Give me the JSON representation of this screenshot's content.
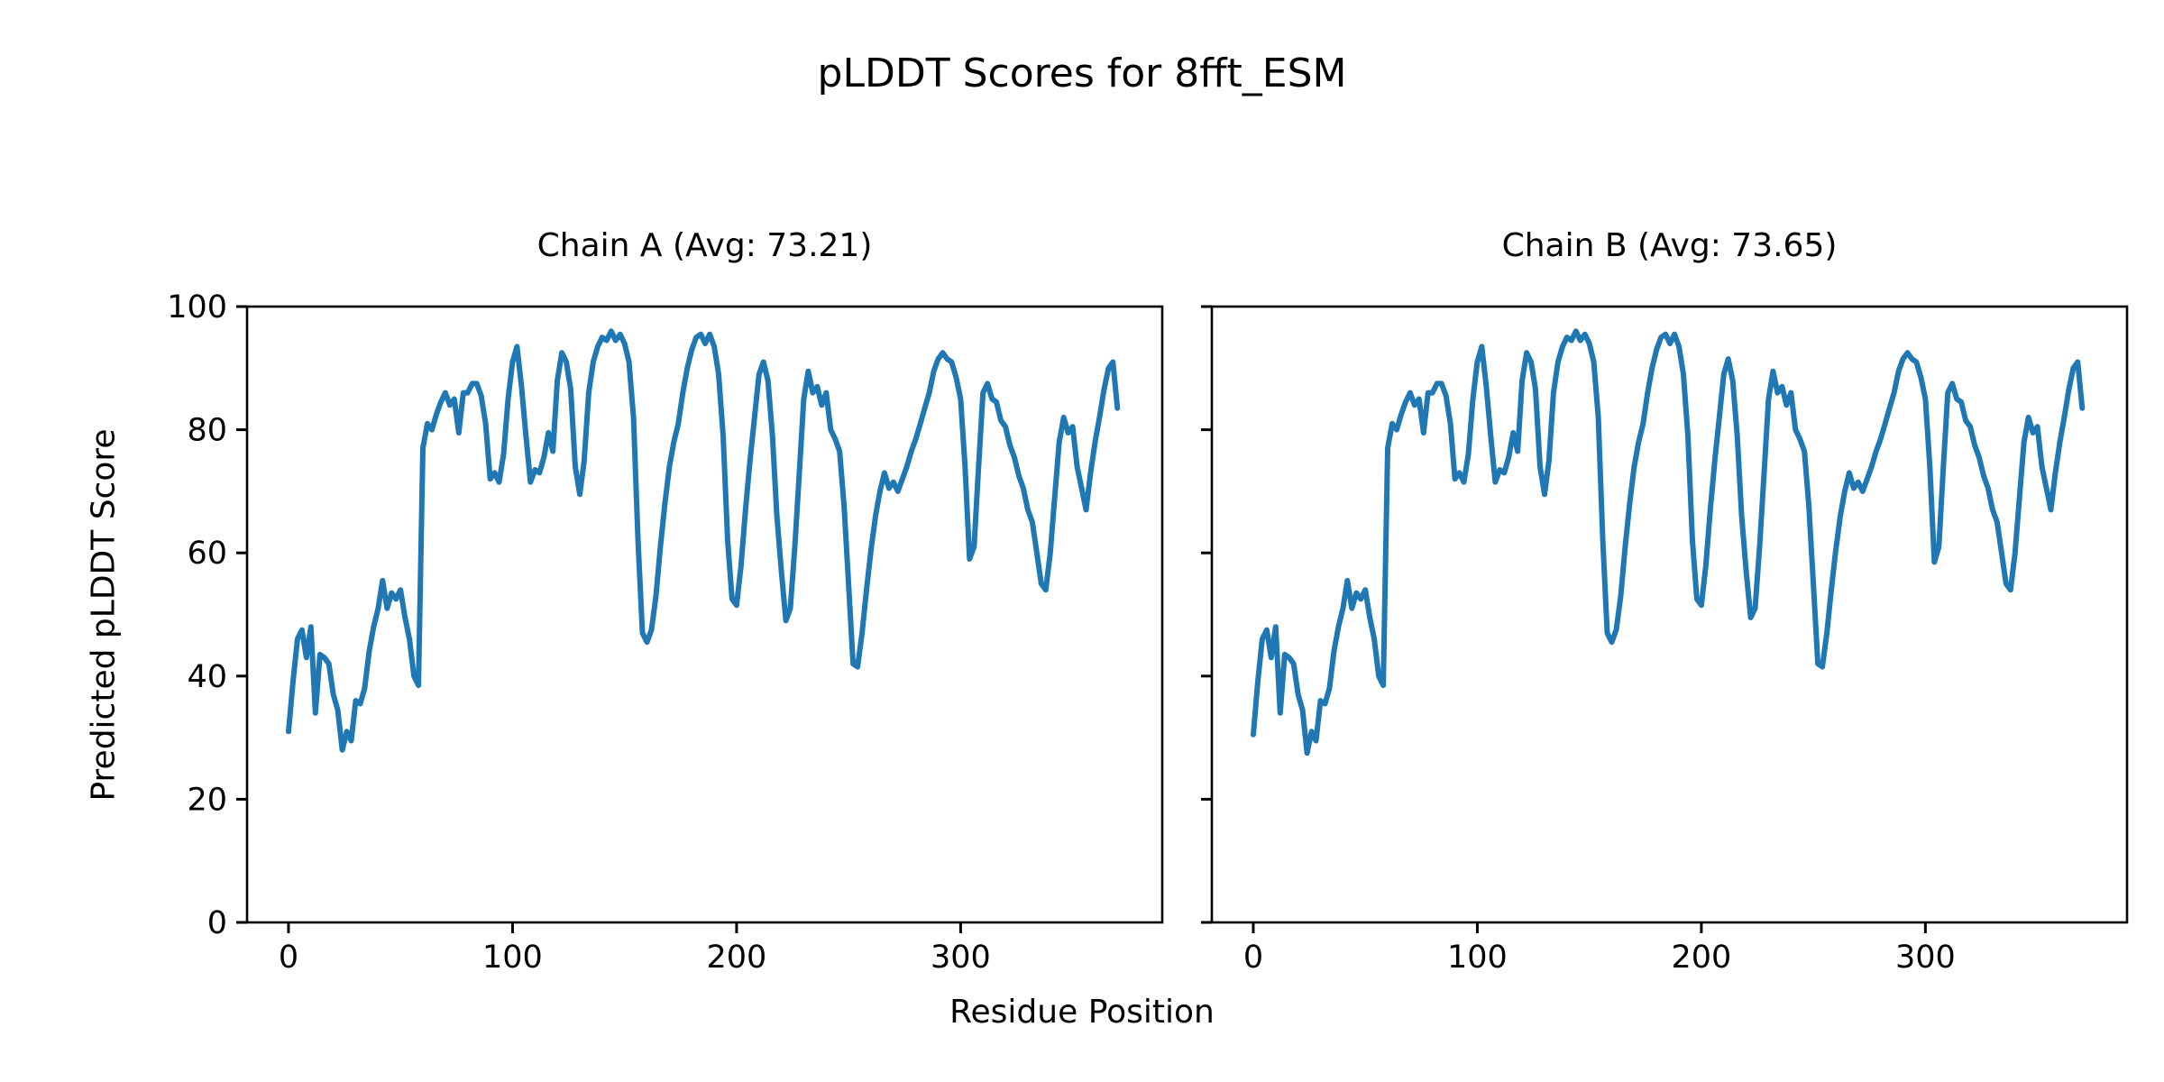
{
  "figure": {
    "suptitle": "pLDDT Scores for 8fft_ESM",
    "xlabel": "Residue Position",
    "ylabel": "Predicted pLDDT Score",
    "background_color": "#ffffff",
    "text_color": "#000000"
  },
  "chart_data": [
    {
      "type": "line",
      "title": "Chain A (Avg: 73.21)",
      "series_name": "Chain A",
      "avg_plddt": 73.21,
      "line_color": "#1f77b4",
      "grid": false,
      "legend": "none",
      "x_start": 0,
      "x_step": 2,
      "xlim": [
        -18.5,
        390
      ],
      "ylim": [
        0,
        100
      ],
      "xticks": [
        0,
        100,
        200,
        300
      ],
      "yticks": [
        0,
        20,
        40,
        60,
        80,
        100
      ],
      "show_ytick_labels": true,
      "values": [
        31,
        39,
        46,
        47.5,
        43,
        48,
        34,
        43.5,
        43,
        42,
        37,
        34.5,
        28,
        31,
        29.5,
        36,
        35.5,
        38,
        44,
        48,
        51,
        55.5,
        51,
        53.5,
        52.5,
        54,
        49.5,
        46,
        40,
        38.5,
        77,
        81,
        80,
        82.5,
        84.5,
        86,
        84,
        85,
        79.5,
        86,
        86,
        87.5,
        87.5,
        85.5,
        81,
        72,
        73,
        71.5,
        76,
        85,
        91,
        93.5,
        87,
        79,
        71.5,
        73.5,
        73,
        75.5,
        79.5,
        76.5,
        88,
        92.5,
        91,
        86.5,
        74,
        69.5,
        75,
        86,
        91,
        93.5,
        95,
        94.5,
        96,
        94.5,
        95.5,
        94,
        91,
        82,
        62,
        47,
        45.5,
        47.5,
        53,
        61,
        68,
        74,
        78,
        81,
        86,
        90,
        93,
        95,
        95.5,
        94,
        95.5,
        93.5,
        89,
        79,
        62,
        52.5,
        51.5,
        58,
        67,
        75,
        82,
        89,
        91,
        88,
        79,
        66,
        57,
        49,
        51,
        61,
        73,
        85,
        89.5,
        86,
        87,
        84,
        86,
        80,
        78.5,
        76.5,
        67.5,
        55,
        42,
        41.5,
        47,
        54,
        60.5,
        66,
        70,
        73,
        70.5,
        71.5,
        70,
        72,
        74,
        76.5,
        78.5,
        81,
        83.5,
        86,
        89.5,
        91.5,
        92.5,
        91.5,
        91,
        88.5,
        85,
        74,
        59,
        61,
        74,
        86,
        87.5,
        85,
        84.5,
        81.5,
        80.5,
        77.5,
        75.5,
        72.5,
        70.5,
        67,
        65,
        60,
        55,
        54,
        60,
        69,
        78,
        82,
        79.5,
        80.5,
        74,
        70.5,
        67,
        73,
        78,
        82,
        86.5,
        90,
        91,
        83.5
      ]
    },
    {
      "type": "line",
      "title": "Chain B (Avg: 73.65)",
      "series_name": "Chain B",
      "avg_plddt": 73.65,
      "line_color": "#1f77b4",
      "grid": false,
      "legend": "none",
      "x_start": 0,
      "x_step": 2,
      "xlim": [
        -18.5,
        390
      ],
      "ylim": [
        0,
        100
      ],
      "xticks": [
        0,
        100,
        200,
        300
      ],
      "yticks": [
        0,
        20,
        40,
        60,
        80,
        100
      ],
      "show_ytick_labels": false,
      "values": [
        30.5,
        39,
        46,
        47.5,
        43,
        48,
        34,
        43.5,
        43,
        42,
        37,
        34.5,
        27.5,
        31,
        29.5,
        36,
        35.5,
        38,
        44,
        48,
        51,
        55.5,
        51,
        53.5,
        52.5,
        54,
        49.5,
        46,
        40,
        38.5,
        77,
        81,
        80,
        82.5,
        84.5,
        86,
        84,
        85,
        79.5,
        86,
        86,
        87.5,
        87.5,
        85.5,
        81,
        72,
        73,
        71.5,
        76,
        85,
        91,
        93.5,
        87,
        79,
        71.5,
        73.5,
        73,
        75.5,
        79.5,
        76.5,
        88,
        92.5,
        91,
        86.5,
        74,
        69.5,
        75,
        86,
        91,
        93.5,
        95,
        94.5,
        96,
        94.5,
        95.5,
        94,
        91,
        82,
        62,
        47,
        45.5,
        47.5,
        53,
        61,
        68,
        74,
        78,
        81,
        86,
        90,
        93,
        95,
        95.5,
        94,
        95.5,
        93.5,
        89,
        79,
        62,
        52.5,
        51.5,
        58,
        67,
        75,
        82,
        89,
        91.5,
        88,
        79,
        66,
        57,
        49.5,
        51,
        61,
        73,
        85,
        89.5,
        86,
        87,
        84,
        86,
        80,
        78.5,
        76.5,
        67.5,
        55,
        42,
        41.5,
        47,
        54,
        60.5,
        66,
        70,
        73,
        70.5,
        71.5,
        70,
        72,
        74,
        76.5,
        78.5,
        81,
        83.5,
        86,
        89.5,
        91.5,
        92.5,
        91.5,
        91,
        88.5,
        85,
        74,
        58.5,
        61,
        74,
        86,
        87.5,
        85,
        84.5,
        81.5,
        80.5,
        77.5,
        75.5,
        72.5,
        70.5,
        67,
        65,
        60,
        55,
        54,
        60,
        69,
        78,
        82,
        79.5,
        80.5,
        74,
        70.5,
        67,
        73,
        78,
        82,
        86.5,
        90,
        91,
        83.5
      ]
    }
  ]
}
